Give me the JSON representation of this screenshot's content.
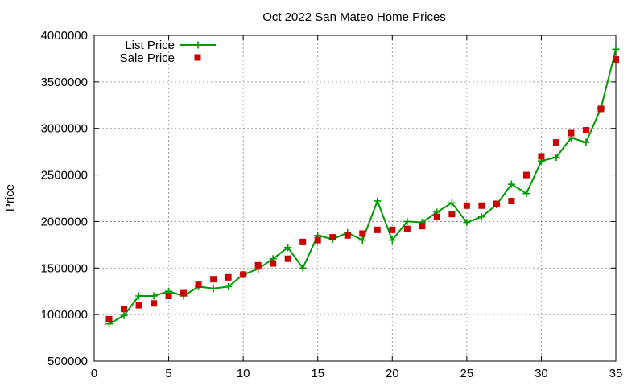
{
  "chart_data": {
    "type": "line",
    "title": "Oct 2022 San Mateo Home Prices",
    "xlabel": "",
    "ylabel": "Price",
    "xlim": [
      0,
      35
    ],
    "ylim": [
      500000,
      4000000
    ],
    "xticks": [
      "0",
      "5",
      "10",
      "15",
      "20",
      "25",
      "30",
      "35"
    ],
    "yticks": [
      "500000",
      "1000000",
      "1500000",
      "2000000",
      "2500000",
      "3000000",
      "3500000",
      "4000000"
    ],
    "grid": true,
    "legend_position": "top-left",
    "x": [
      1,
      2,
      3,
      4,
      5,
      6,
      7,
      8,
      9,
      10,
      11,
      12,
      13,
      14,
      15,
      16,
      17,
      18,
      19,
      20,
      21,
      22,
      23,
      24,
      25,
      26,
      27,
      28,
      29,
      30,
      31,
      32,
      33,
      34,
      35
    ],
    "series": [
      {
        "name": "List Price",
        "style": "line-with-plus",
        "color": "#009900",
        "values": [
          900000,
          990000,
          1200000,
          1200000,
          1250000,
          1200000,
          1300000,
          1280000,
          1300000,
          1430000,
          1490000,
          1600000,
          1720000,
          1500000,
          1850000,
          1810000,
          1880000,
          1800000,
          2220000,
          1800000,
          2000000,
          1990000,
          2100000,
          2200000,
          1990000,
          2050000,
          2180000,
          2400000,
          2300000,
          2650000,
          2690000,
          2900000,
          2850000,
          3220000,
          3850000
        ]
      },
      {
        "name": "Sale Price",
        "style": "square-points",
        "color": "#cc0000",
        "values": [
          950000,
          1060000,
          1100000,
          1120000,
          1200000,
          1230000,
          1320000,
          1380000,
          1400000,
          1430000,
          1530000,
          1550000,
          1600000,
          1780000,
          1800000,
          1830000,
          1850000,
          1870000,
          1910000,
          1910000,
          1920000,
          1950000,
          2050000,
          2080000,
          2170000,
          2170000,
          2190000,
          2220000,
          2500000,
          2700000,
          2850000,
          2950000,
          2980000,
          3210000,
          3740000
        ]
      }
    ]
  }
}
